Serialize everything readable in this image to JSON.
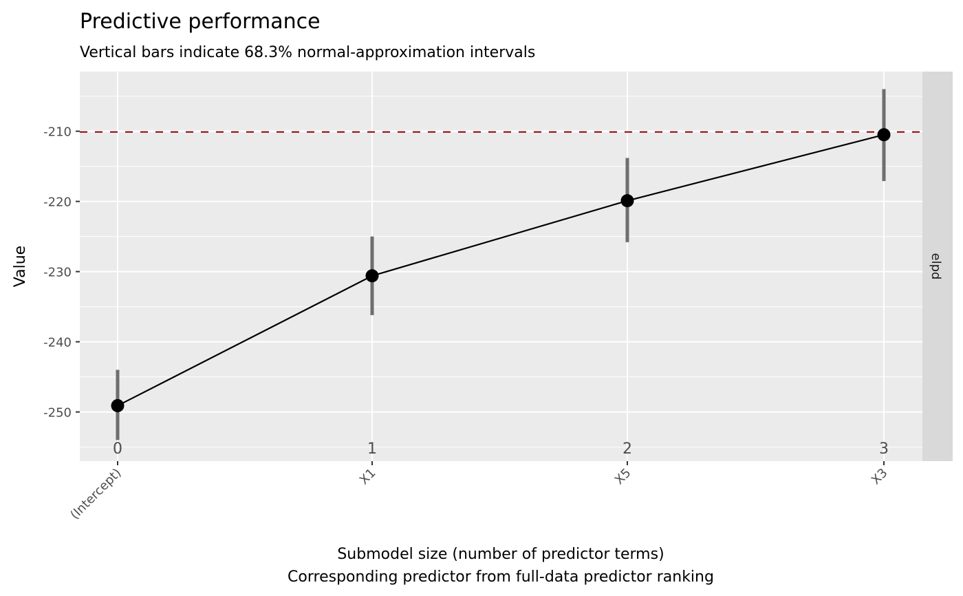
{
  "chart_data": {
    "type": "line",
    "title": "Predictive performance",
    "subtitle": "Vertical bars indicate 68.3% normal-approximation intervals",
    "xlabel": "Submodel size (number of predictor terms)",
    "xlabel2": "Corresponding predictor from full-data predictor ranking",
    "ylabel": "Value",
    "facet_label": "elpd",
    "x": [
      0,
      1,
      2,
      3
    ],
    "x_tick_labels": [
      "0",
      "1",
      "2",
      "3"
    ],
    "x_secondary_labels": [
      "(Intercept)",
      "X1",
      "X5",
      "X3"
    ],
    "y": [
      -249.1,
      -230.6,
      -219.9,
      -210.5
    ],
    "y_lower": [
      -254.0,
      -236.2,
      -225.8,
      -217.1
    ],
    "y_upper": [
      -244.0,
      -225.0,
      -213.8,
      -204.0
    ],
    "reference_line": -210.1,
    "ylim": [
      -257.0,
      -201.5
    ],
    "y_ticks": [
      -210,
      -220,
      -230,
      -240,
      -250
    ],
    "y_tick_labels": [
      "-210",
      "-220",
      "-230",
      "-240",
      "-250"
    ],
    "grid": true,
    "colors": {
      "panel": "#ebebeb",
      "strip": "#d9d9d9",
      "line": "#000000",
      "errorbar": "#6e6e6e",
      "reference": "#8b0000"
    }
  }
}
